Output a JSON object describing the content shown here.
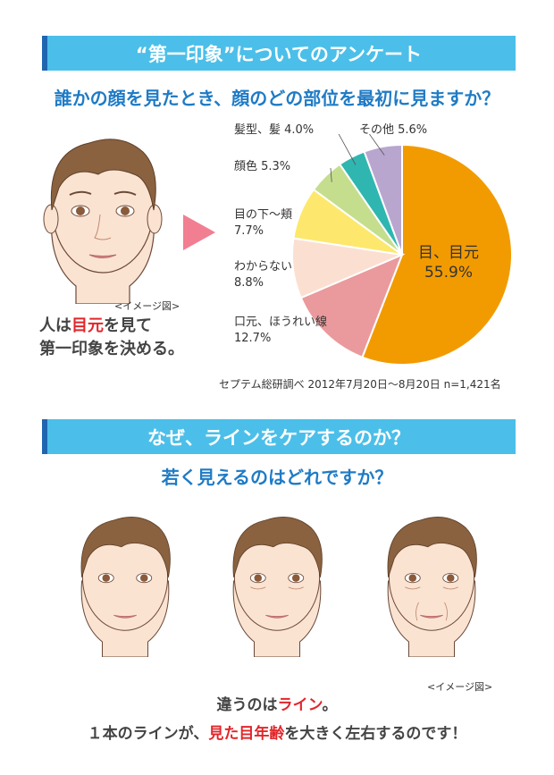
{
  "section1": {
    "banner": "“第一印象”についてのアンケート",
    "question": "誰かの顔を見たとき、顔のどの部位を最初に見ますか？",
    "image_note": "<イメージ図>",
    "caption_pre": "人は",
    "caption_highlight": "目元",
    "caption_post": "を見て",
    "caption_line2": "第一印象を決める。",
    "source": "セプテム総研調べ 2012年7月20日〜8月20日 n=1,421名"
  },
  "chart_data": {
    "type": "pie",
    "title": "",
    "slices": [
      {
        "label": "目、目元",
        "value": 55.9,
        "color": "#f29b00"
      },
      {
        "label": "口元、ほうれい線",
        "value": 12.7,
        "color": "#ea9a9c"
      },
      {
        "label": "わからない",
        "value": 8.8,
        "color": "#fbe0d2"
      },
      {
        "label": "目の下〜頬",
        "value": 7.7,
        "color": "#fde86d"
      },
      {
        "label": "顔色",
        "value": 5.3,
        "color": "#c5de8e"
      },
      {
        "label": "髪型、髪",
        "value": 4.0,
        "color": "#2fb6b0"
      },
      {
        "label": "その他",
        "value": 5.6,
        "color": "#b8a6cf"
      }
    ],
    "labels_text": {
      "eye": "目、目元",
      "eye_value": "55.9%",
      "mouth": "口元、ほうれい線",
      "mouth_value": "12.7%",
      "unknown": "わからない",
      "unknown_value": "8.8%",
      "under_eye": "目の下〜頬",
      "under_eye_value": "7.7%",
      "complexion": "顔色 5.3%",
      "hair": "髪型、髪 4.0%",
      "other": "その他 5.6%"
    }
  },
  "section2": {
    "banner": "なぜ、ラインをケアするのか？",
    "question": "若く見えるのはどれですか？",
    "image_note": "<イメージ図>",
    "line1_pre": "違うのは",
    "line1_highlight": "ライン",
    "line1_post": "。",
    "line2_pre": "１本のラインが、",
    "line2_highlight": "見た目年齢",
    "line2_post": "を大きく左右するのです！"
  },
  "colors": {
    "banner": "#4bbfe9",
    "banner_accent": "#1f66b1",
    "question": "#1f7bc5",
    "highlight": "#e2262a",
    "arrow": "#f27e91"
  }
}
